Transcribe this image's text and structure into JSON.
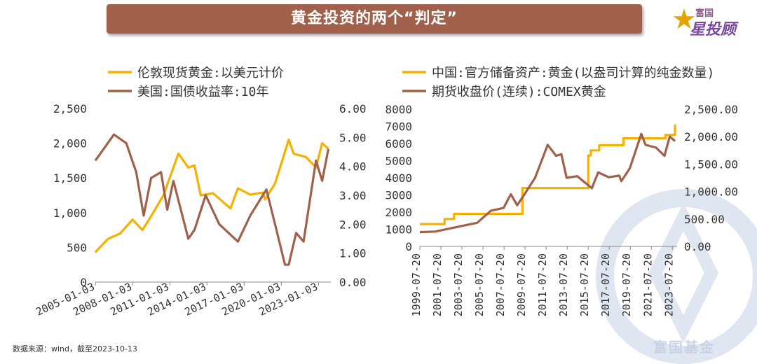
{
  "header": {
    "title": "黄金投资的两个“判定”"
  },
  "logo": {
    "top_text": "富国",
    "main_text": "星投顾",
    "color": "#7a4a9a",
    "star_color": "#e3a400"
  },
  "watermark": {
    "text": "富国基金",
    "color": "#c8d3e6"
  },
  "footer": {
    "source": "数据来源：wind，截至2023-10-13"
  },
  "colors": {
    "gold": "#f5b000",
    "brown": "#a0604a"
  },
  "chart_data": [
    {
      "type": "line",
      "legend": [
        "伦敦现货黄金:以美元计价",
        "美国:国债收益率:10年"
      ],
      "x_ticks": [
        "2005-01-03",
        "2008-01-03",
        "2011-01-03",
        "2014-01-03",
        "2017-01-03",
        "2020-01-03",
        "2023-01-03"
      ],
      "y_left": {
        "ticks": [
          "0",
          "500",
          "1,000",
          "1,500",
          "2,000",
          "2,500"
        ],
        "range": [
          0,
          2500
        ]
      },
      "y_right": {
        "ticks": [
          "0.00",
          "1.00",
          "2.00",
          "3.00",
          "4.00",
          "5.00",
          "6.00"
        ],
        "range": [
          0,
          6
        ]
      },
      "series": [
        {
          "name": "伦敦现货黄金:以美元计价",
          "axis": "left",
          "color": "#f5b000",
          "x": [
            2005.0,
            2006.0,
            2007.0,
            2008.0,
            2008.8,
            2009.5,
            2010.5,
            2011.7,
            2012.5,
            2013.0,
            2013.5,
            2014.5,
            2015.9,
            2016.5,
            2017.5,
            2018.5,
            2018.7,
            2019.5,
            2020.6,
            2021.0,
            2022.0,
            2022.8,
            2023.3,
            2023.8
          ],
          "y": [
            430,
            620,
            700,
            900,
            750,
            950,
            1250,
            1850,
            1650,
            1680,
            1250,
            1280,
            1060,
            1350,
            1260,
            1290,
            1190,
            1420,
            2050,
            1850,
            1800,
            1650,
            2000,
            1920
          ]
        },
        {
          "name": "美国:国债收益率:10年",
          "axis": "right",
          "color": "#a0604a",
          "x": [
            2005.0,
            2006.5,
            2007.5,
            2008.3,
            2008.9,
            2009.5,
            2010.3,
            2010.8,
            2011.3,
            2012.5,
            2013.0,
            2013.9,
            2015.0,
            2016.5,
            2017.5,
            2018.8,
            2019.5,
            2020.3,
            2020.6,
            2021.2,
            2021.8,
            2022.3,
            2022.8,
            2023.3,
            2023.8
          ],
          "y": [
            4.2,
            5.1,
            4.8,
            3.8,
            2.3,
            3.6,
            3.8,
            2.5,
            3.5,
            1.5,
            1.8,
            3.0,
            2.0,
            1.4,
            2.3,
            3.2,
            2.0,
            0.6,
            0.6,
            1.7,
            1.4,
            2.8,
            4.2,
            3.5,
            4.6
          ]
        }
      ]
    },
    {
      "type": "line",
      "legend": [
        "中国:官方储备资产:黄金(以盎司计算的纯金数量)",
        "期货收盘价(连续):COMEX黄金"
      ],
      "x_ticks": [
        "1999-07-20",
        "2001-07-20",
        "2003-07-20",
        "2005-07-20",
        "2007-07-20",
        "2009-07-20",
        "2011-07-20",
        "2013-07-20",
        "2015-07-20",
        "2017-07-20",
        "2019-07-20",
        "2021-07-20",
        "2023-07-20"
      ],
      "y_left": {
        "ticks": [
          "0",
          "1000",
          "2000",
          "3000",
          "4000",
          "5000",
          "6000",
          "7000",
          "8000"
        ],
        "range": [
          0,
          8000
        ]
      },
      "y_right": {
        "ticks": [
          "0.00",
          "500.00",
          "1,000.00",
          "1,500.00",
          "2,000.00",
          "2,500.00"
        ],
        "range": [
          0,
          2500
        ]
      },
      "series": [
        {
          "name": "中国:官方储备资产:黄金(以盎司计算的纯金数量)",
          "axis": "left",
          "color": "#f5b000",
          "step": true,
          "x": [
            1999.55,
            2001.9,
            2002.8,
            2009.3,
            2015.55,
            2015.8,
            2016.6,
            2018.9,
            2019.8,
            2022.9,
            2023.8
          ],
          "y": [
            1300,
            1600,
            1900,
            3400,
            5300,
            5600,
            5900,
            6300,
            6300,
            6500,
            7100
          ]
        },
        {
          "name": "期货收盘价(连续):COMEX黄金",
          "axis": "right",
          "color": "#a0604a",
          "x": [
            1999.55,
            2001.0,
            2002.0,
            2003.5,
            2005.0,
            2006.3,
            2007.5,
            2008.2,
            2008.8,
            2009.5,
            2010.5,
            2011.7,
            2012.5,
            2013.0,
            2013.5,
            2014.5,
            2015.9,
            2016.5,
            2017.5,
            2018.5,
            2018.7,
            2019.5,
            2020.6,
            2021.0,
            2022.0,
            2022.8,
            2023.3,
            2023.8
          ],
          "y": [
            260,
            270,
            310,
            370,
            430,
            650,
            700,
            950,
            750,
            950,
            1250,
            1850,
            1650,
            1680,
            1250,
            1280,
            1060,
            1350,
            1260,
            1290,
            1190,
            1420,
            2050,
            1850,
            1800,
            1650,
            2000,
            1920
          ]
        }
      ]
    }
  ]
}
